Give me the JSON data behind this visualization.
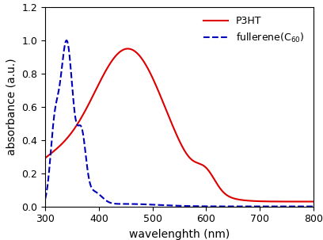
{
  "xlabel": "wavelenghth (nm)",
  "ylabel": "absorbance (a.u.)",
  "xlim": [
    300,
    800
  ],
  "ylim": [
    0,
    1.2
  ],
  "yticks": [
    0.0,
    0.2,
    0.4,
    0.6,
    0.8,
    1.0,
    1.2
  ],
  "xticks": [
    300,
    400,
    500,
    600,
    700,
    800
  ],
  "p3ht_color": "#dd0000",
  "fullerene_color": "#0000bb",
  "background_color": "#ffffff",
  "xlabel_fontsize": 10,
  "ylabel_fontsize": 10,
  "tick_fontsize": 9,
  "legend_fontsize": 9,
  "linewidth": 1.5
}
